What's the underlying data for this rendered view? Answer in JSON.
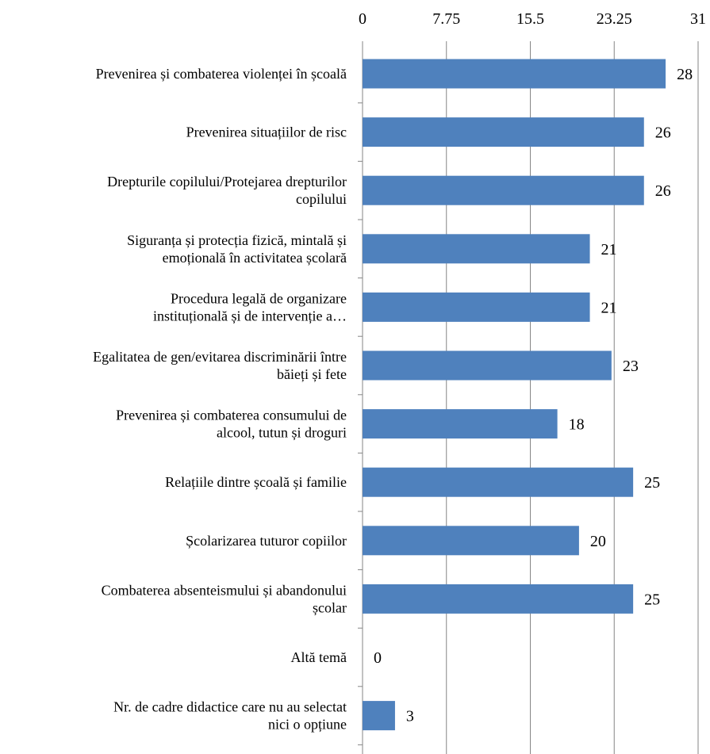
{
  "chart_data": {
    "type": "bar",
    "orientation": "horizontal",
    "title": "",
    "xlabel": "",
    "ylabel": "",
    "xlim": [
      0,
      31
    ],
    "x_ticks": [
      "0",
      "7.75",
      "15.5",
      "23.25",
      "31"
    ],
    "x_axis_position": "top",
    "grid": true,
    "legend": "none",
    "bar_color": "#4f81bd",
    "categories": [
      [
        "Prevenirea și combaterea violenței în școală"
      ],
      [
        "Prevenirea situațiilor de risc"
      ],
      [
        "Drepturile copilului/Protejarea drepturilor",
        "copilului"
      ],
      [
        "Siguranța și protecția fizică, mintală și",
        "emoțională în activitatea școlară"
      ],
      [
        "Procedura legală de organizare",
        "instituțională și de intervenție a…"
      ],
      [
        "Egalitatea de gen/evitarea discriminării între",
        "băieți și fete"
      ],
      [
        "Prevenirea și combaterea consumului de",
        "alcool, tutun și droguri"
      ],
      [
        "Relațiile dintre școală și familie"
      ],
      [
        "Școlarizarea tuturor copiilor"
      ],
      [
        "Combaterea absenteismului și  abandonului",
        "școlar"
      ],
      [
        "Altă temă"
      ],
      [
        "Nr. de cadre didactice care nu au selectat",
        "nici o opțiune"
      ]
    ],
    "values": [
      28,
      26,
      26,
      21,
      21,
      23,
      18,
      25,
      20,
      25,
      0,
      3
    ],
    "data_labels": [
      "28",
      "26",
      "26",
      "21",
      "21",
      "23",
      "18",
      "25",
      "20",
      "25",
      "0",
      "3"
    ]
  }
}
